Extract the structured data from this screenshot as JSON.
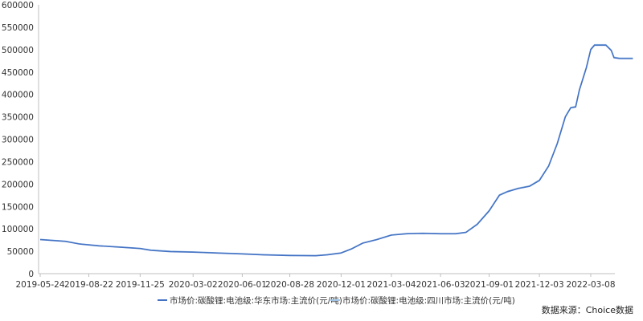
{
  "chart_data": {
    "type": "line",
    "title": "",
    "xlabel": "",
    "ylabel": "",
    "ylim": [
      0,
      600000
    ],
    "y_ticks": [
      "0",
      "50000",
      "100000",
      "150000",
      "200000",
      "250000",
      "300000",
      "350000",
      "400000",
      "450000",
      "500000",
      "550000",
      "600000"
    ],
    "x_ticks": [
      "2019-05-24",
      "2019-08-22",
      "2019-11-25",
      "2020-03-02",
      "2020-06-01",
      "2020-08-28",
      "2020-12-01",
      "2021-03-04",
      "2021-06-03",
      "2021-09-01",
      "2021-12-03",
      "2022-03-08"
    ],
    "grid": false,
    "legend_position": "bottom",
    "series": [
      {
        "name": "市场价:碳酸锂:电池级:华东市场:主流价(元/吨)",
        "color": "#4472c4",
        "points": [
          [
            "2019-05-24",
            76000
          ],
          [
            "2019-07-10",
            72000
          ],
          [
            "2019-08-05",
            66000
          ],
          [
            "2019-09-10",
            62000
          ],
          [
            "2019-10-20",
            59000
          ],
          [
            "2019-11-25",
            56000
          ],
          [
            "2019-12-15",
            52000
          ],
          [
            "2020-01-20",
            49000
          ],
          [
            "2020-03-02",
            48000
          ],
          [
            "2020-04-15",
            46000
          ],
          [
            "2020-06-01",
            44000
          ],
          [
            "2020-07-10",
            42000
          ],
          [
            "2020-08-28",
            40500
          ],
          [
            "2020-10-15",
            40000
          ],
          [
            "2020-11-05",
            42000
          ],
          [
            "2020-12-01",
            46000
          ],
          [
            "2020-12-20",
            55000
          ],
          [
            "2021-01-10",
            68000
          ],
          [
            "2021-02-05",
            76000
          ],
          [
            "2021-03-04",
            86000
          ],
          [
            "2021-04-01",
            89000
          ],
          [
            "2021-05-01",
            90000
          ],
          [
            "2021-06-03",
            89000
          ],
          [
            "2021-07-01",
            89000
          ],
          [
            "2021-07-20",
            92000
          ],
          [
            "2021-08-10",
            110000
          ],
          [
            "2021-09-01",
            140000
          ],
          [
            "2021-09-20",
            175000
          ],
          [
            "2021-10-05",
            183000
          ],
          [
            "2021-10-25",
            190000
          ],
          [
            "2021-11-15",
            195000
          ],
          [
            "2021-12-03",
            208000
          ],
          [
            "2021-12-20",
            240000
          ],
          [
            "2022-01-05",
            290000
          ],
          [
            "2022-01-20",
            350000
          ],
          [
            "2022-01-30",
            370000
          ],
          [
            "2022-02-08",
            372000
          ],
          [
            "2022-02-15",
            410000
          ],
          [
            "2022-02-28",
            460000
          ],
          [
            "2022-03-08",
            500000
          ],
          [
            "2022-03-15",
            510000
          ],
          [
            "2022-04-05",
            510000
          ],
          [
            "2022-04-15",
            498000
          ],
          [
            "2022-04-20",
            482000
          ],
          [
            "2022-05-01",
            480000
          ],
          [
            "2022-05-25",
            480000
          ]
        ]
      },
      {
        "name": "市场价:碳酸锂:电池级:四川市场:主流价(元/吨)",
        "color": "#9dc3e6",
        "points": [
          [
            "2019-05-24",
            76500
          ],
          [
            "2019-07-10",
            72500
          ],
          [
            "2019-08-05",
            66500
          ],
          [
            "2019-09-10",
            62500
          ],
          [
            "2019-10-20",
            59500
          ],
          [
            "2019-11-25",
            56500
          ],
          [
            "2019-12-15",
            53000
          ],
          [
            "2020-01-20",
            50000
          ],
          [
            "2020-03-02",
            48500
          ],
          [
            "2020-04-15",
            46500
          ],
          [
            "2020-06-01",
            44500
          ],
          [
            "2020-07-10",
            42500
          ],
          [
            "2020-08-28",
            41000
          ],
          [
            "2020-10-15",
            40500
          ],
          [
            "2020-11-05",
            42500
          ],
          [
            "2020-12-01",
            46500
          ],
          [
            "2020-12-20",
            55500
          ],
          [
            "2021-01-10",
            68500
          ],
          [
            "2021-02-05",
            76500
          ],
          [
            "2021-03-04",
            86500
          ],
          [
            "2021-04-01",
            89500
          ],
          [
            "2021-05-01",
            90500
          ],
          [
            "2021-06-03",
            89500
          ],
          [
            "2021-07-01",
            89500
          ],
          [
            "2021-07-20",
            92500
          ],
          [
            "2021-08-10",
            111000
          ],
          [
            "2021-09-01",
            141000
          ],
          [
            "2021-09-20",
            176000
          ],
          [
            "2021-10-05",
            184000
          ],
          [
            "2021-10-25",
            191000
          ],
          [
            "2021-11-15",
            196000
          ],
          [
            "2021-12-03",
            209000
          ],
          [
            "2021-12-20",
            241000
          ],
          [
            "2022-01-05",
            291000
          ],
          [
            "2022-01-20",
            351000
          ],
          [
            "2022-01-30",
            371000
          ],
          [
            "2022-02-08",
            373000
          ],
          [
            "2022-02-15",
            411000
          ],
          [
            "2022-02-28",
            461000
          ],
          [
            "2022-03-08",
            501000
          ],
          [
            "2022-03-15",
            511000
          ],
          [
            "2022-04-05",
            511000
          ],
          [
            "2022-04-15",
            499000
          ],
          [
            "2022-04-20",
            483000
          ],
          [
            "2022-05-01",
            481000
          ],
          [
            "2022-05-25",
            481000
          ]
        ]
      }
    ]
  },
  "source_note": "数据来源：Choice数据"
}
